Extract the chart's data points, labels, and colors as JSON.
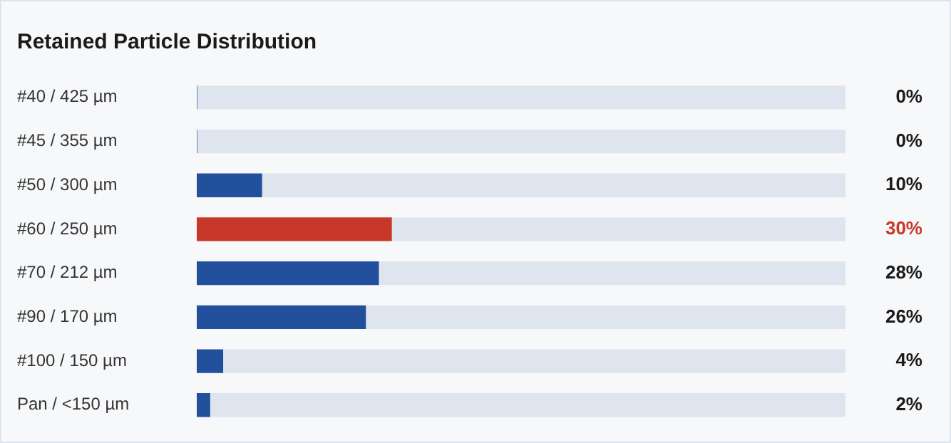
{
  "chart_data": {
    "type": "bar",
    "orientation": "horizontal",
    "title": "Retained Particle Distribution",
    "categories": [
      "#40 / 425 µm",
      "#45 / 355 µm",
      "#50 / 300 µm",
      "#60 / 250 µm",
      "#70 / 212 µm",
      "#90 / 170 µm",
      "#100 / 150 µm",
      "Pan / <150 µm"
    ],
    "series": [
      {
        "color": "#22509c",
        "colors": [
          "#22509c",
          "#22509c",
          "#22509c",
          "#c8382a",
          "#22509c",
          "#22509c",
          "#22509c",
          "#22509c"
        ],
        "values": [
          0,
          0,
          10,
          30,
          28,
          26,
          4,
          2
        ],
        "value_labels": [
          "0%",
          "0%",
          "10%",
          "30%",
          "28%",
          "26%",
          "4%",
          "2%"
        ]
      },
      {
        "color": "#dfe5ee",
        "values": [
          100,
          100,
          90,
          70,
          72,
          74,
          96,
          98
        ]
      }
    ],
    "stacked": true,
    "xlim": [
      0,
      100
    ],
    "tick_labels": "y",
    "legend": false
  }
}
